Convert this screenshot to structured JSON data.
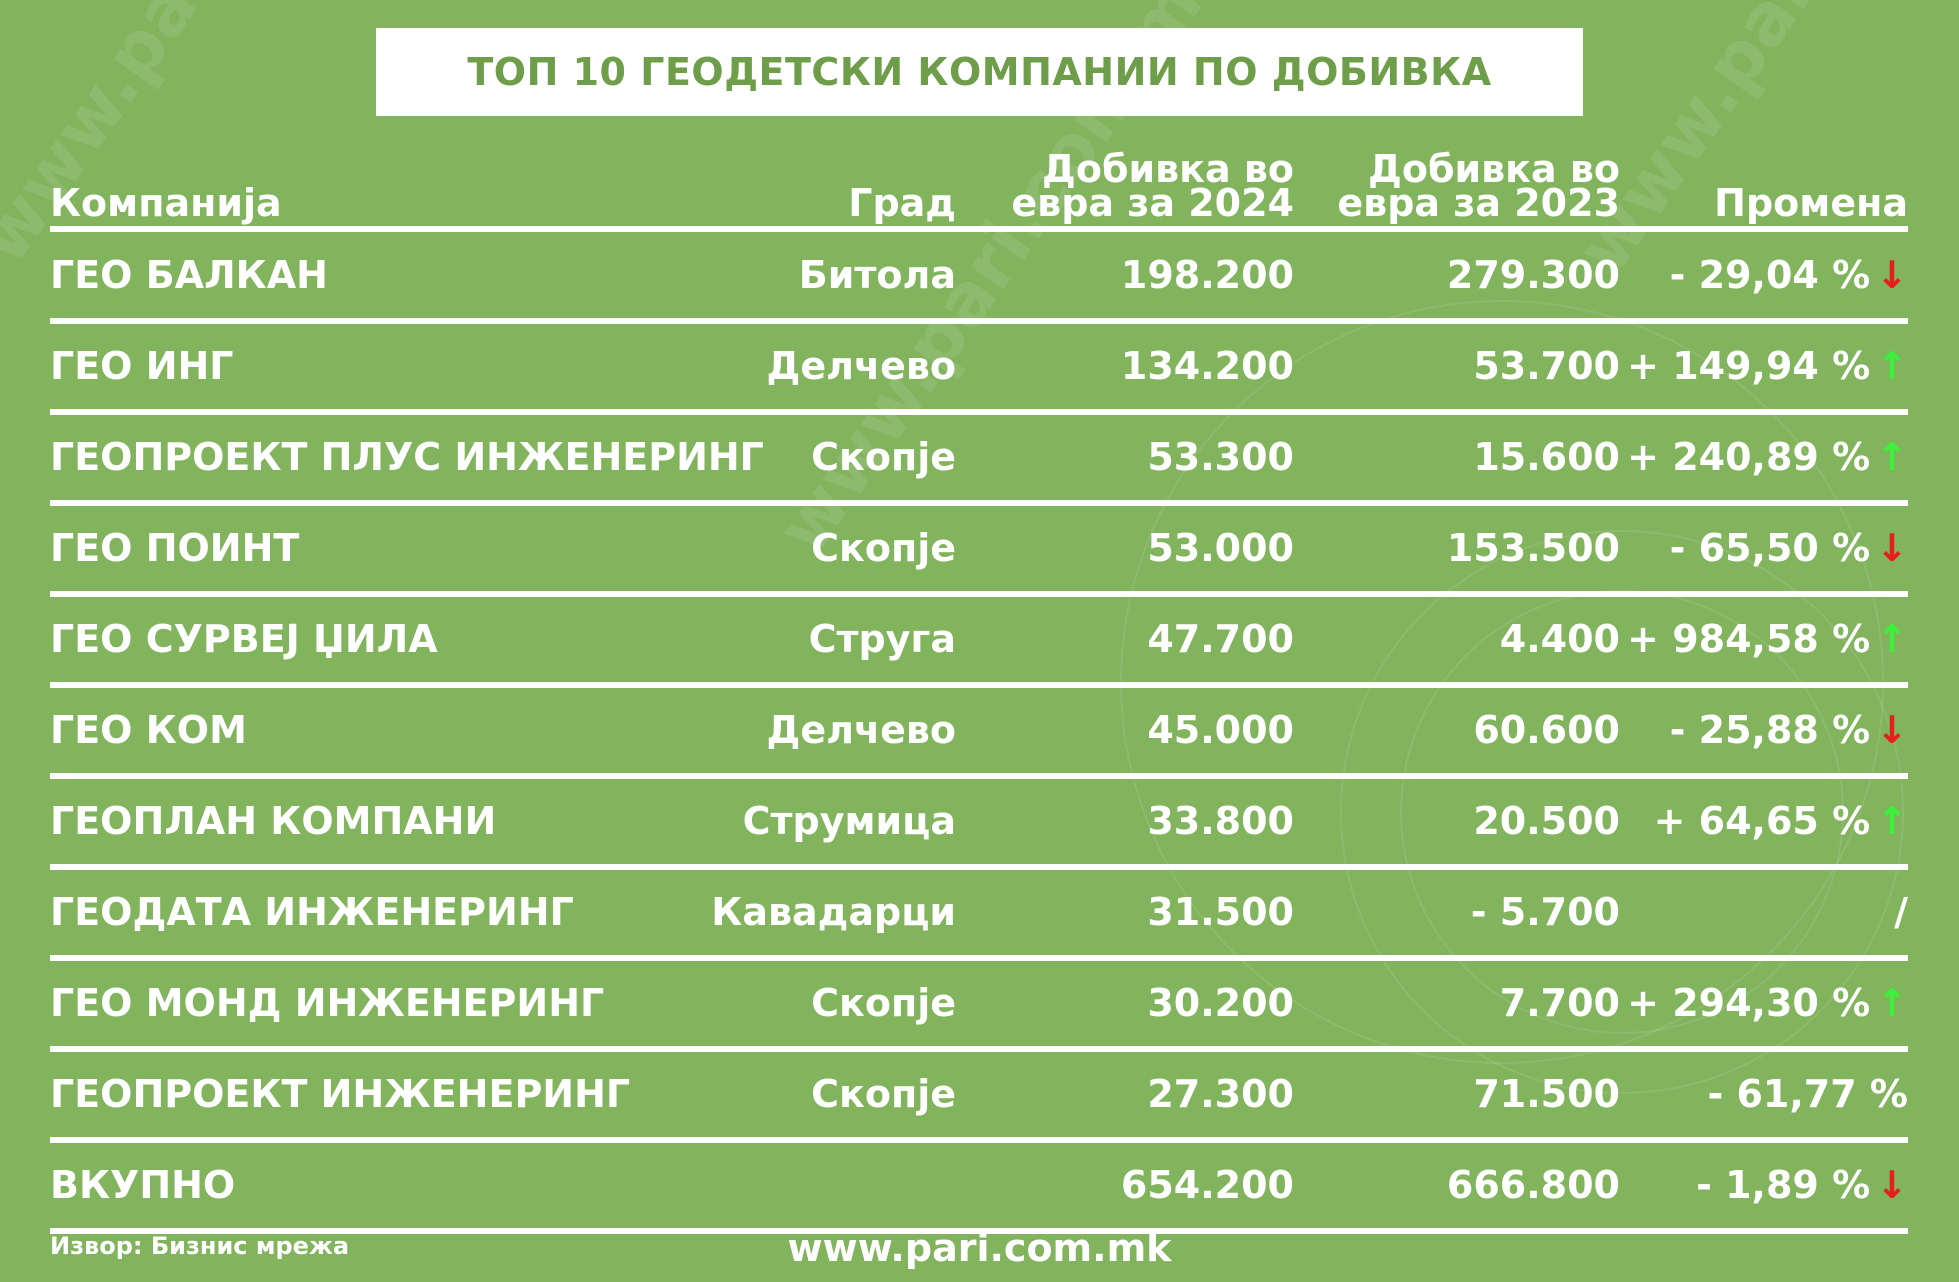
{
  "title": "ТОП 10 ГЕОДЕТСКИ КОМПАНИИ ПО ДОБИВКА",
  "colors": {
    "background": "#82b35d",
    "title_text": "#6f9e4a",
    "up": "#3cf03c",
    "down": "#e61e1e"
  },
  "chart_data": {
    "type": "table",
    "title": "ТОП 10 ГЕОДЕТСКИ КОМПАНИИ ПО ДОБИВКА",
    "columns": [
      "Компанија",
      "Град",
      "Добивка во евра за 2024",
      "Добивка во евра за 2023",
      "Промена"
    ],
    "rows": [
      {
        "company": "ГЕО БАЛКАН",
        "city": "Битола",
        "p2024": "198.200",
        "p2023": "279.300",
        "change": "- 29,04 %",
        "arrow": "down",
        "arrow_glyph": "↓"
      },
      {
        "company": "ГЕО ИНГ",
        "city": "Делчево",
        "p2024": "134.200",
        "p2023": "53.700",
        "change": "+ 149,94 %",
        "arrow": "up",
        "arrow_glyph": "↑"
      },
      {
        "company": "ГЕОПРОЕКТ ПЛУС ИНЖЕНЕРИНГ",
        "city": "Скопје",
        "p2024": "53.300",
        "p2023": "15.600",
        "change": "+ 240,89 %",
        "arrow": "up",
        "arrow_glyph": "↑"
      },
      {
        "company": "ГЕО ПОИНТ",
        "city": "Скопје",
        "p2024": "53.000",
        "p2023": "153.500",
        "change": "- 65,50 %",
        "arrow": "down",
        "arrow_glyph": "↓"
      },
      {
        "company": "ГЕО СУРВЕЈ ЏИЛА",
        "city": "Струга",
        "p2024": "47.700",
        "p2023": "4.400",
        "change": "+ 984,58 %",
        "arrow": "up",
        "arrow_glyph": "↑"
      },
      {
        "company": "ГЕО КОМ",
        "city": "Делчево",
        "p2024": "45.000",
        "p2023": "60.600",
        "change": "- 25,88 %",
        "arrow": "down",
        "arrow_glyph": "↓"
      },
      {
        "company": "ГЕОПЛАН КОМПАНИ",
        "city": "Струмица",
        "p2024": "33.800",
        "p2023": "20.500",
        "change": "+ 64,65 %",
        "arrow": "up",
        "arrow_glyph": "↑"
      },
      {
        "company": "ГЕОДАТА ИНЖЕНЕРИНГ",
        "city": "Кавадарци",
        "p2024": "31.500",
        "p2023": "- 5.700",
        "change": "/",
        "arrow": "",
        "arrow_glyph": ""
      },
      {
        "company": "ГЕО МОНД ИНЖЕНЕРИНГ",
        "city": "Скопје",
        "p2024": "30.200",
        "p2023": "7.700",
        "change": "+ 294,30 %",
        "arrow": "up",
        "arrow_glyph": "↑"
      },
      {
        "company": "ГЕОПРОЕКТ ИНЖЕНЕРИНГ",
        "city": "Скопје",
        "p2024": "27.300",
        "p2023": "71.500",
        "change": "- 61,77 %",
        "arrow": "",
        "arrow_glyph": ""
      },
      {
        "company": "ВКУПНО",
        "city": "",
        "p2024": "654.200",
        "p2023": "666.800",
        "change": "- 1,89 %",
        "arrow": "down",
        "arrow_glyph": "↓"
      }
    ]
  },
  "header": {
    "company": "Компанија",
    "city": "Град",
    "p2024_line1": "Добивка во",
    "p2024_line2": "евра за 2024",
    "p2023_line1": "Добивка во",
    "p2023_line2": "евра за 2023",
    "change": "Промена"
  },
  "source": "Извор: Бизнис мрежа",
  "site": "www.pari.com.mk",
  "watermark_text": "www.pari.com.mk"
}
